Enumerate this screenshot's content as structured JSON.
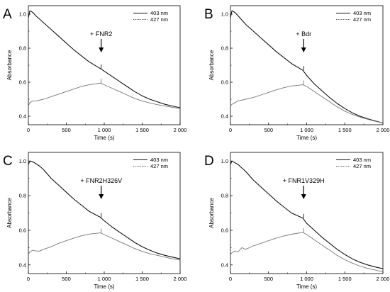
{
  "chart_data": [
    {
      "type": "line",
      "panel": "A",
      "xlabel": "Time (s)",
      "ylabel": "Absorbance",
      "xlim": [
        0,
        2000
      ],
      "ylim": [
        0.35,
        1.05
      ],
      "xticks": [
        0,
        500,
        1000,
        1500,
        2000
      ],
      "xtick_labels": [
        "0",
        "500",
        "1 000",
        "1 500",
        "2 000"
      ],
      "yticks": [
        0.4,
        0.6,
        0.8,
        1.0
      ],
      "ytick_labels": [
        "0.4",
        "0.6",
        "0.8",
        "1.0"
      ],
      "legend_position": "top-right",
      "annotation": {
        "text": "+ FNR2",
        "x": 960
      },
      "series": [
        {
          "name": "403 nm",
          "style": "solid",
          "x": [
            0,
            20,
            60,
            100,
            200,
            300,
            400,
            500,
            600,
            700,
            800,
            950,
            1000,
            1100,
            1200,
            1300,
            1400,
            1500,
            1600,
            1700,
            1800,
            1900,
            2000
          ],
          "y": [
            0.98,
            1.02,
            1.01,
            0.99,
            0.95,
            0.91,
            0.87,
            0.83,
            0.79,
            0.755,
            0.72,
            0.68,
            0.665,
            0.635,
            0.605,
            0.575,
            0.545,
            0.52,
            0.5,
            0.485,
            0.47,
            0.46,
            0.45
          ]
        },
        {
          "name": "427 nm",
          "style": "dotted",
          "x": [
            0,
            20,
            60,
            100,
            200,
            300,
            400,
            500,
            600,
            700,
            800,
            950,
            1000,
            1100,
            1200,
            1300,
            1400,
            1500,
            1600,
            1700,
            1800,
            1900,
            2000
          ],
          "y": [
            0.46,
            0.48,
            0.49,
            0.49,
            0.5,
            0.515,
            0.53,
            0.545,
            0.56,
            0.575,
            0.585,
            0.595,
            0.585,
            0.565,
            0.545,
            0.525,
            0.505,
            0.49,
            0.478,
            0.468,
            0.46,
            0.452,
            0.445
          ]
        }
      ]
    },
    {
      "type": "line",
      "panel": "B",
      "xlabel": "Time (s)",
      "ylabel": "Absorbance",
      "xlim": [
        0,
        2000
      ],
      "ylim": [
        0.35,
        1.05
      ],
      "xticks": [
        0,
        500,
        1000,
        1500,
        2000
      ],
      "xtick_labels": [
        "0",
        "500",
        "1 000",
        "1 500",
        "2 000"
      ],
      "yticks": [
        0.4,
        0.6,
        0.8,
        1.0
      ],
      "ytick_labels": [
        "0.4",
        "0.6",
        "0.8",
        "1.0"
      ],
      "legend_position": "top-right",
      "annotation": {
        "text": "+ Bdr",
        "x": 960
      },
      "series": [
        {
          "name": "403 nm",
          "style": "solid",
          "x": [
            0,
            20,
            60,
            100,
            200,
            300,
            400,
            500,
            600,
            700,
            800,
            950,
            1000,
            1100,
            1200,
            1300,
            1400,
            1500,
            1600,
            1700,
            1800,
            1900,
            2000
          ],
          "y": [
            0.98,
            1.02,
            1.01,
            0.99,
            0.94,
            0.9,
            0.86,
            0.82,
            0.78,
            0.745,
            0.71,
            0.67,
            0.64,
            0.59,
            0.55,
            0.51,
            0.475,
            0.445,
            0.42,
            0.4,
            0.385,
            0.372,
            0.36
          ]
        },
        {
          "name": "427 nm",
          "style": "dotted",
          "x": [
            0,
            20,
            60,
            100,
            200,
            300,
            400,
            500,
            600,
            700,
            800,
            950,
            1000,
            1100,
            1200,
            1300,
            1400,
            1500,
            1600,
            1700,
            1800,
            1900,
            2000
          ],
          "y": [
            0.46,
            0.47,
            0.48,
            0.49,
            0.5,
            0.51,
            0.525,
            0.54,
            0.555,
            0.568,
            0.578,
            0.585,
            0.575,
            0.545,
            0.515,
            0.485,
            0.455,
            0.43,
            0.41,
            0.395,
            0.382,
            0.37,
            0.36
          ]
        }
      ]
    },
    {
      "type": "line",
      "panel": "C",
      "xlabel": "Time (s)",
      "ylabel": "Absorbance",
      "xlim": [
        0,
        2000
      ],
      "ylim": [
        0.35,
        1.05
      ],
      "xticks": [
        0,
        500,
        1000,
        1500,
        2000
      ],
      "xtick_labels": [
        "0",
        "500",
        "1 000",
        "1 500",
        "2 000"
      ],
      "yticks": [
        0.4,
        0.6,
        0.8,
        1.0
      ],
      "ytick_labels": [
        "0.4",
        "0.6",
        "0.8",
        "1.0"
      ],
      "legend_position": "top-right",
      "annotation": {
        "text": "+ FNR2H326V",
        "x": 960
      },
      "series": [
        {
          "name": "403 nm",
          "style": "solid",
          "x": [
            0,
            20,
            60,
            100,
            150,
            200,
            300,
            400,
            500,
            600,
            700,
            800,
            950,
            1000,
            1100,
            1200,
            1300,
            1400,
            1500,
            1600,
            1700,
            1800,
            1900,
            2000
          ],
          "y": [
            0.98,
            1.0,
            0.995,
            0.985,
            0.97,
            0.95,
            0.9,
            0.86,
            0.82,
            0.78,
            0.745,
            0.71,
            0.675,
            0.655,
            0.62,
            0.59,
            0.56,
            0.53,
            0.505,
            0.485,
            0.468,
            0.455,
            0.445,
            0.435
          ]
        },
        {
          "name": "427 nm",
          "style": "dotted",
          "x": [
            0,
            20,
            60,
            100,
            150,
            200,
            300,
            400,
            500,
            600,
            700,
            800,
            950,
            1000,
            1100,
            1200,
            1300,
            1400,
            1500,
            1600,
            1700,
            1800,
            1900,
            2000
          ],
          "y": [
            0.46,
            0.475,
            0.485,
            0.48,
            0.48,
            0.49,
            0.505,
            0.525,
            0.54,
            0.555,
            0.568,
            0.578,
            0.585,
            0.575,
            0.555,
            0.535,
            0.515,
            0.495,
            0.478,
            0.465,
            0.455,
            0.445,
            0.435,
            0.428
          ]
        }
      ]
    },
    {
      "type": "line",
      "panel": "D",
      "xlabel": "Time (s)",
      "ylabel": "Absorbance",
      "xlim": [
        0,
        2000
      ],
      "ylim": [
        0.35,
        1.05
      ],
      "xticks": [
        0,
        500,
        1000,
        1500,
        2000
      ],
      "xtick_labels": [
        "0",
        "500",
        "1 000",
        "1 500",
        "2 000"
      ],
      "yticks": [
        0.4,
        0.6,
        0.8,
        1.0
      ],
      "ytick_labels": [
        "0.4",
        "0.6",
        "0.8",
        "1.0"
      ],
      "legend_position": "top-right",
      "annotation": {
        "text": "+ FNR1V329H",
        "x": 960
      },
      "series": [
        {
          "name": "403 nm",
          "style": "solid",
          "x": [
            0,
            20,
            60,
            100,
            150,
            200,
            300,
            400,
            500,
            600,
            700,
            800,
            950,
            1000,
            1100,
            1200,
            1300,
            1400,
            1500,
            1600,
            1700,
            1800,
            1900,
            2000
          ],
          "y": [
            0.98,
            1.0,
            0.99,
            0.98,
            0.96,
            0.94,
            0.89,
            0.85,
            0.81,
            0.77,
            0.735,
            0.7,
            0.67,
            0.64,
            0.6,
            0.56,
            0.525,
            0.49,
            0.46,
            0.435,
            0.415,
            0.4,
            0.388,
            0.378
          ]
        },
        {
          "name": "427 nm",
          "style": "dotted",
          "x": [
            0,
            20,
            60,
            100,
            150,
            200,
            300,
            400,
            500,
            600,
            700,
            800,
            950,
            1000,
            1100,
            1200,
            1300,
            1400,
            1500,
            1600,
            1700,
            1800,
            1900,
            2000
          ],
          "y": [
            0.46,
            0.47,
            0.48,
            0.475,
            0.5,
            0.49,
            0.51,
            0.525,
            0.54,
            0.555,
            0.567,
            0.577,
            0.588,
            0.575,
            0.545,
            0.515,
            0.485,
            0.455,
            0.43,
            0.41,
            0.393,
            0.38,
            0.37,
            0.36
          ]
        }
      ]
    }
  ]
}
